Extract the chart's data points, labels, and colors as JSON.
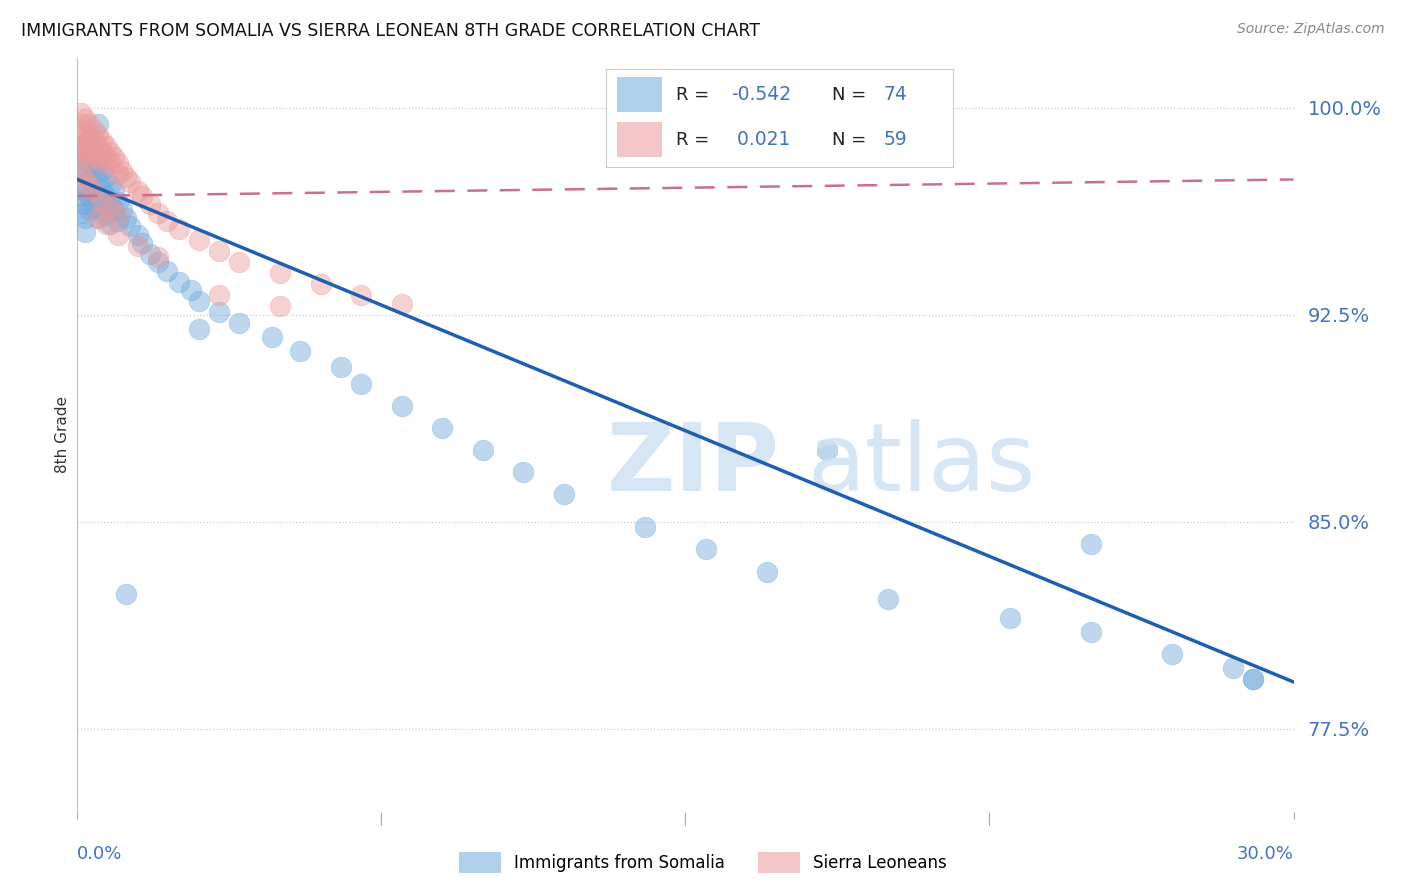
{
  "title": "IMMIGRANTS FROM SOMALIA VS SIERRA LEONEAN 8TH GRADE CORRELATION CHART",
  "source": "Source: ZipAtlas.com",
  "ylabel": "8th Grade",
  "yticks_pct": [
    77.5,
    85.0,
    92.5,
    100.0
  ],
  "xmin": 0.0,
  "xmax": 0.3,
  "ymin": 0.745,
  "ymax": 1.018,
  "somalia_color": "#6fa8dc",
  "sierra_leone_color": "#ea9999",
  "somalia_R": -0.542,
  "somalia_N": 74,
  "sierra_leone_R": 0.021,
  "sierra_leone_N": 59,
  "somalia_line_x0": 0.0,
  "somalia_line_x1": 0.3,
  "somalia_line_y0": 0.974,
  "somalia_line_y1": 0.792,
  "sierra_line_x0": 0.0,
  "sierra_line_x1": 0.3,
  "sierra_line_y0": 0.968,
  "sierra_line_y1": 0.974,
  "grid_color": "#cccccc",
  "title_color": "#111111",
  "blue_color": "#4472c4",
  "watermark_color": "#cfe2f3",
  "regression_blue": "#1f5eb0",
  "regression_pink": "#c87090",
  "legend_R_color": "#222222",
  "legend_val_color": "#4472c4",
  "somalia_points_x": [
    0.001,
    0.001,
    0.001,
    0.001,
    0.001,
    0.002,
    0.002,
    0.002,
    0.002,
    0.002,
    0.002,
    0.003,
    0.003,
    0.003,
    0.003,
    0.003,
    0.004,
    0.004,
    0.004,
    0.004,
    0.005,
    0.005,
    0.005,
    0.005,
    0.006,
    0.006,
    0.006,
    0.007,
    0.007,
    0.007,
    0.008,
    0.008,
    0.009,
    0.009,
    0.01,
    0.01,
    0.011,
    0.012,
    0.013,
    0.015,
    0.016,
    0.018,
    0.02,
    0.022,
    0.025,
    0.028,
    0.03,
    0.035,
    0.04,
    0.048,
    0.055,
    0.065,
    0.07,
    0.08,
    0.09,
    0.1,
    0.11,
    0.12,
    0.14,
    0.155,
    0.17,
    0.2,
    0.23,
    0.25,
    0.27,
    0.285,
    0.29,
    0.005,
    0.008,
    0.012,
    0.185,
    0.25,
    0.29,
    0.03
  ],
  "somalia_points_y": [
    0.985,
    0.978,
    0.972,
    0.968,
    0.962,
    0.982,
    0.976,
    0.97,
    0.965,
    0.96,
    0.955,
    0.988,
    0.98,
    0.974,
    0.968,
    0.963,
    0.984,
    0.976,
    0.97,
    0.964,
    0.98,
    0.974,
    0.967,
    0.96,
    0.977,
    0.97,
    0.963,
    0.975,
    0.968,
    0.961,
    0.972,
    0.965,
    0.97,
    0.963,
    0.966,
    0.959,
    0.963,
    0.96,
    0.957,
    0.954,
    0.951,
    0.947,
    0.944,
    0.941,
    0.937,
    0.934,
    0.93,
    0.926,
    0.922,
    0.917,
    0.912,
    0.906,
    0.9,
    0.892,
    0.884,
    0.876,
    0.868,
    0.86,
    0.848,
    0.84,
    0.832,
    0.822,
    0.815,
    0.81,
    0.802,
    0.797,
    0.793,
    0.994,
    0.958,
    0.824,
    0.876,
    0.842,
    0.793,
    0.92
  ],
  "sierra_leone_points_x": [
    0.001,
    0.001,
    0.001,
    0.001,
    0.001,
    0.002,
    0.002,
    0.002,
    0.002,
    0.003,
    0.003,
    0.003,
    0.003,
    0.004,
    0.004,
    0.004,
    0.005,
    0.005,
    0.005,
    0.006,
    0.006,
    0.006,
    0.007,
    0.007,
    0.008,
    0.008,
    0.009,
    0.01,
    0.01,
    0.011,
    0.012,
    0.013,
    0.015,
    0.016,
    0.018,
    0.02,
    0.022,
    0.025,
    0.03,
    0.035,
    0.04,
    0.05,
    0.06,
    0.07,
    0.08,
    0.005,
    0.007,
    0.01,
    0.015,
    0.02,
    0.001,
    0.002,
    0.003,
    0.004,
    0.006,
    0.008,
    0.01,
    0.035,
    0.05
  ],
  "sierra_leone_points_y": [
    0.998,
    0.994,
    0.99,
    0.986,
    0.982,
    0.996,
    0.991,
    0.987,
    0.983,
    0.994,
    0.989,
    0.985,
    0.981,
    0.992,
    0.988,
    0.984,
    0.99,
    0.986,
    0.982,
    0.988,
    0.984,
    0.98,
    0.986,
    0.982,
    0.984,
    0.98,
    0.982,
    0.98,
    0.976,
    0.977,
    0.975,
    0.973,
    0.97,
    0.968,
    0.965,
    0.962,
    0.959,
    0.956,
    0.952,
    0.948,
    0.944,
    0.94,
    0.936,
    0.932,
    0.929,
    0.96,
    0.958,
    0.954,
    0.95,
    0.946,
    0.976,
    0.974,
    0.972,
    0.97,
    0.966,
    0.964,
    0.961,
    0.932,
    0.928
  ]
}
